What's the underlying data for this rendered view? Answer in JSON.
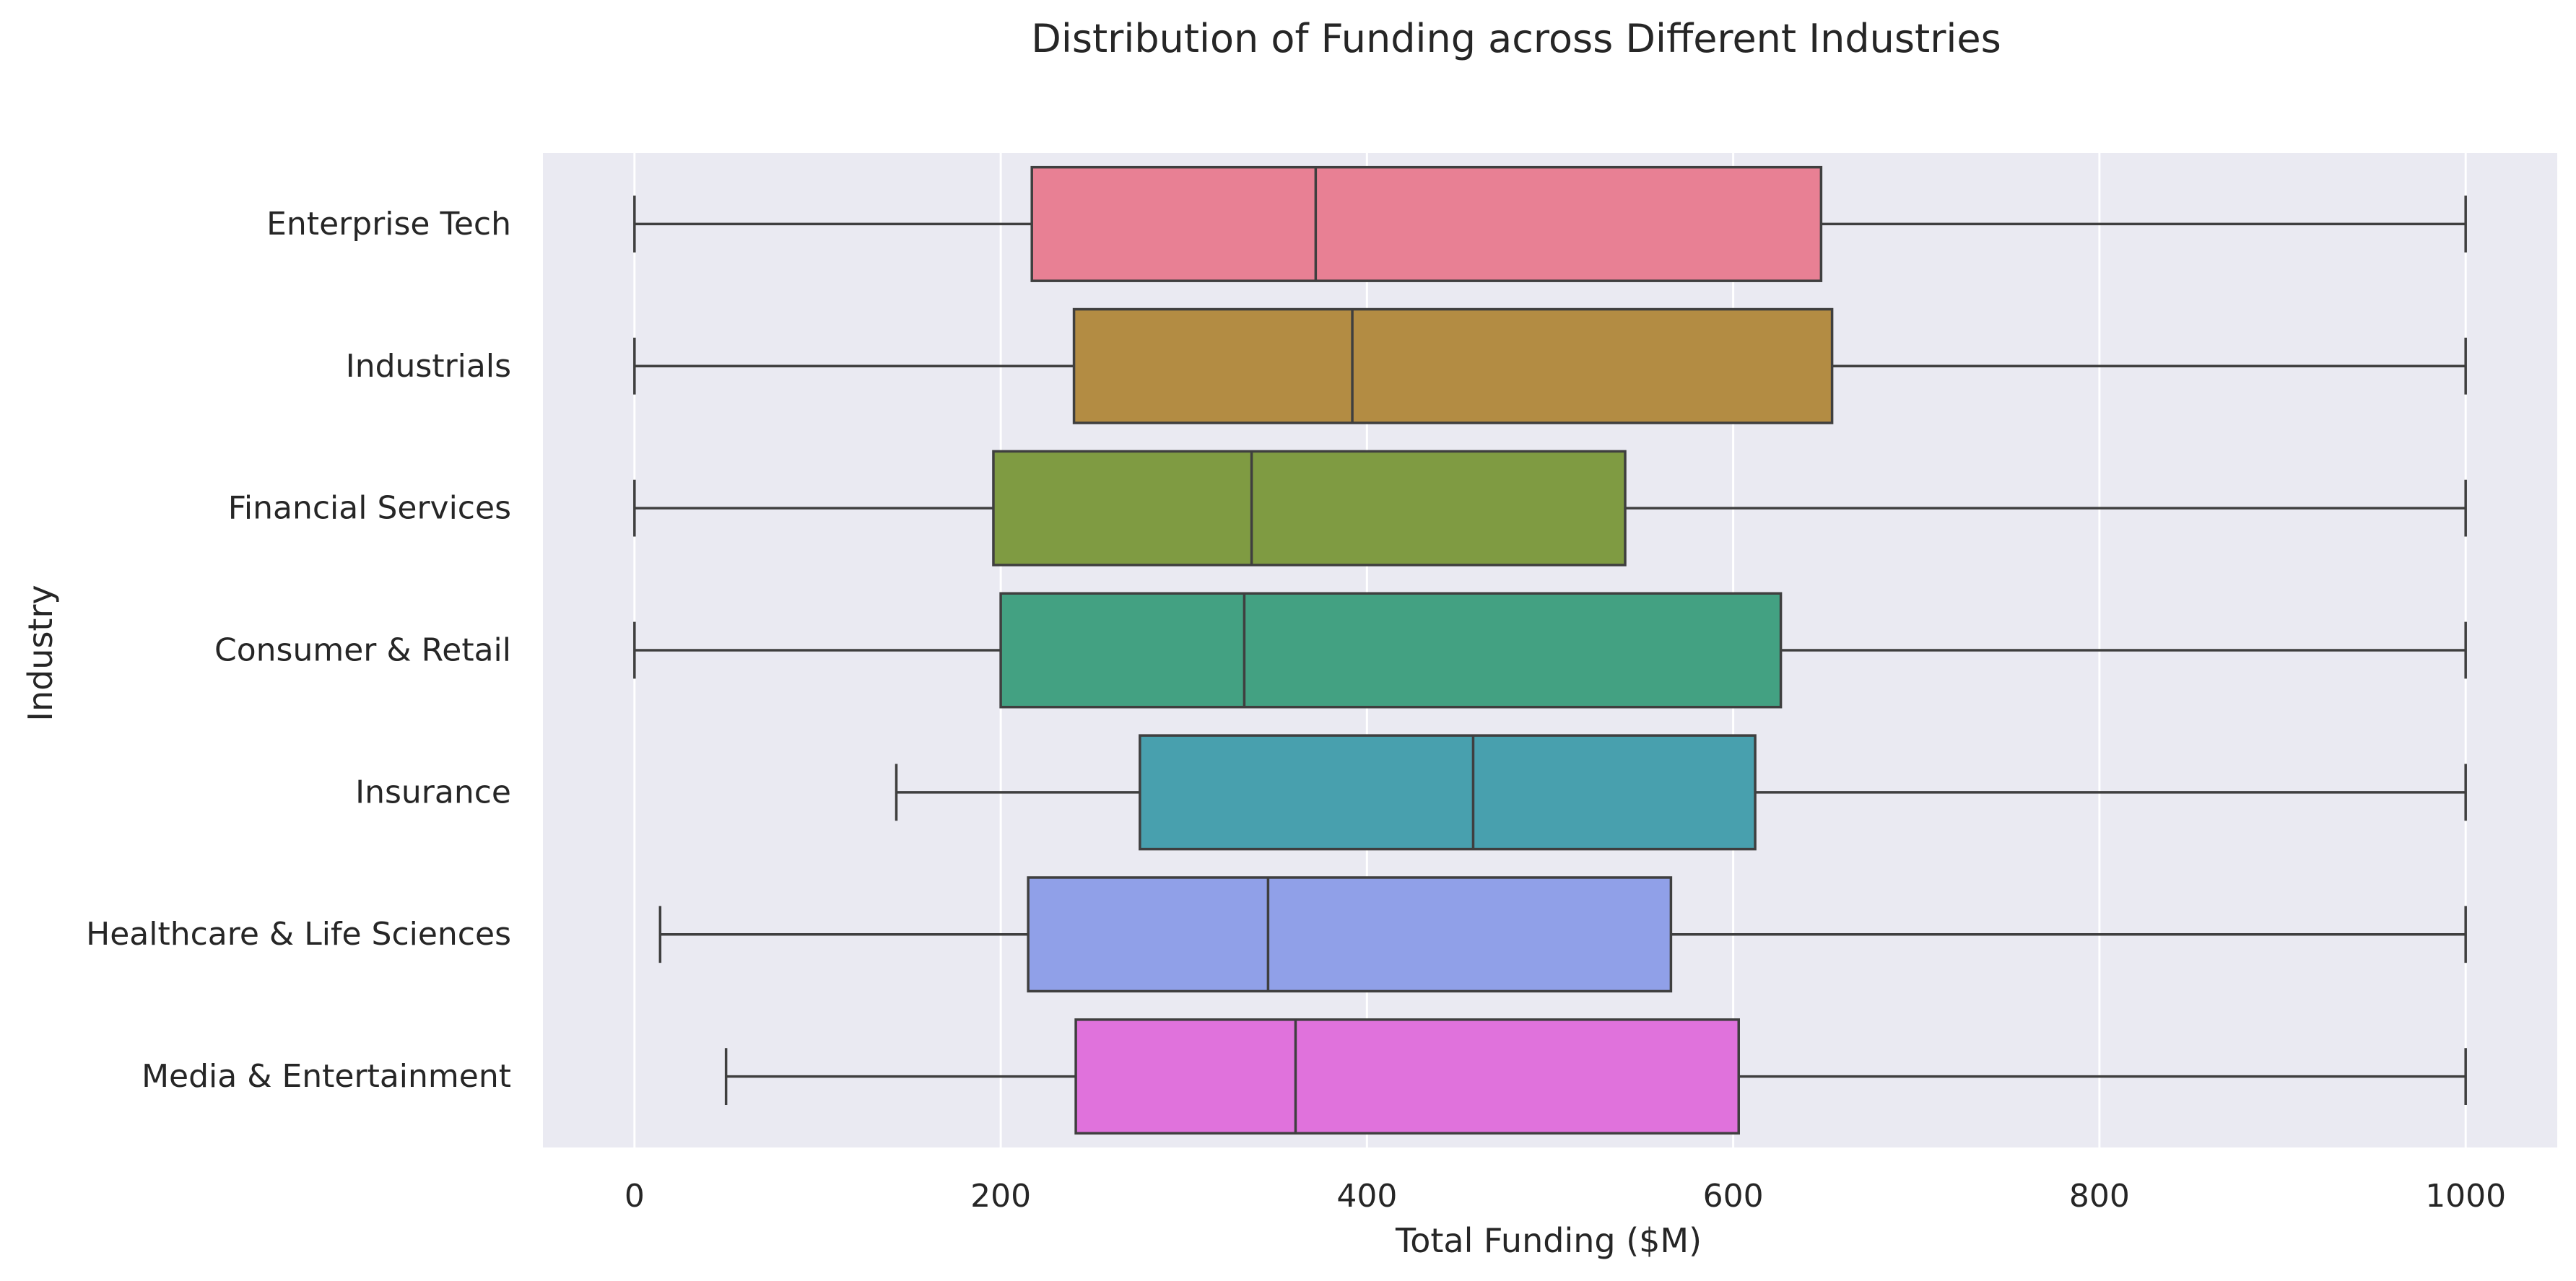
{
  "chart_data": {
    "type": "boxplot",
    "orientation": "horizontal",
    "title": "Distribution of Funding across Different Industries",
    "xlabel": "Total Funding ($M)",
    "ylabel": "Industry",
    "xlim": [
      -50,
      1050
    ],
    "xticks": [
      0,
      200,
      400,
      600,
      800,
      1000
    ],
    "grid": true,
    "legend": "none",
    "background_color": "#eaeaf2",
    "line_color": "#3f3f3f",
    "categories": [
      "Enterprise Tech",
      "Industrials",
      "Financial Services",
      "Consumer & Retail",
      "Insurance",
      "Healthcare & Life Sciences",
      "Media & Entertainment"
    ],
    "boxes": [
      {
        "category": "Enterprise Tech",
        "whisker_low": 0,
        "q1": 217,
        "median": 372,
        "q3": 648,
        "whisker_high": 1000,
        "color": "#e88094"
      },
      {
        "category": "Industrials",
        "whisker_low": 0,
        "q1": 240,
        "median": 392,
        "q3": 654,
        "whisker_high": 1000,
        "color": "#b38c43"
      },
      {
        "category": "Financial Services",
        "whisker_low": 0,
        "q1": 196,
        "median": 337,
        "q3": 541,
        "whisker_high": 1000,
        "color": "#7f9b42"
      },
      {
        "category": "Consumer & Retail",
        "whisker_low": 0,
        "q1": 200,
        "median": 333,
        "q3": 626,
        "whisker_high": 1000,
        "color": "#43a182"
      },
      {
        "category": "Insurance",
        "whisker_low": 143,
        "q1": 276,
        "median": 458,
        "q3": 612,
        "whisker_high": 1000,
        "color": "#48a0ae"
      },
      {
        "category": "Healthcare & Life Sciences",
        "whisker_low": 14,
        "q1": 215,
        "median": 346,
        "q3": 566,
        "whisker_high": 1000,
        "color": "#90a0e8"
      },
      {
        "category": "Media & Entertainment",
        "whisker_low": 50,
        "q1": 241,
        "median": 361,
        "q3": 603,
        "whisker_high": 1000,
        "color": "#e072dc"
      }
    ]
  }
}
